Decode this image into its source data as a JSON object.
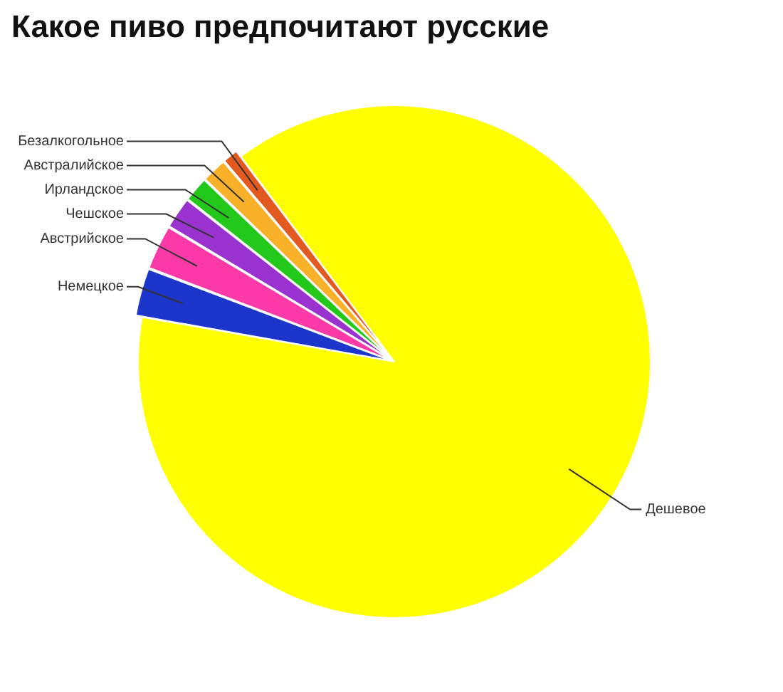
{
  "chart_data": {
    "type": "pie",
    "title": "Какое пиво предпочитают русские",
    "categories": [
      "Дешевое",
      "Немецкое",
      "Австрийское",
      "Чешское",
      "Ирландское",
      "Австралийское",
      "Безалкогольное"
    ],
    "values": [
      88,
      3,
      2.8,
      2,
      1.6,
      1.6,
      1
    ],
    "colors": [
      "#ffff00",
      "#1c36cc",
      "#fb3aa8",
      "#9a32cf",
      "#22c81a",
      "#f8b128",
      "#e35a20"
    ],
    "legend": false
  }
}
